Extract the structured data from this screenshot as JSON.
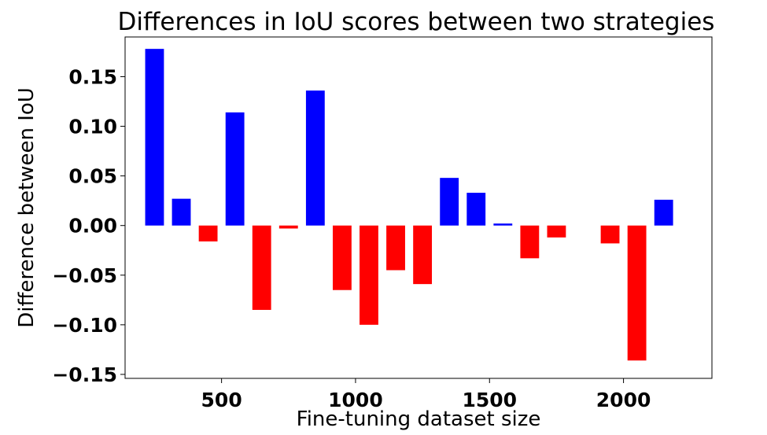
{
  "chart_data": {
    "type": "bar",
    "title": "Differences in IoU scores between two strategies",
    "xlabel": "Fine-tuning dataset size",
    "ylabel": "Difference between IoU",
    "x": [
      250,
      350,
      450,
      550,
      650,
      750,
      850,
      950,
      1050,
      1150,
      1250,
      1350,
      1450,
      1550,
      1650,
      1750,
      1850,
      1950,
      2050,
      2150
    ],
    "values": [
      0.178,
      0.027,
      -0.016,
      0.114,
      -0.085,
      -0.003,
      0.136,
      -0.065,
      -0.1,
      -0.045,
      -0.059,
      0.048,
      0.033,
      0.002,
      -0.033,
      -0.012,
      0.0,
      -0.018,
      -0.136,
      0.026
    ],
    "xlim": [
      140,
      2330
    ],
    "ylim": [
      -0.154,
      0.19
    ],
    "xticks": [
      500,
      1000,
      1500,
      2000
    ],
    "xtick_labels": [
      "500",
      "1000",
      "1500",
      "2000"
    ],
    "yticks": [
      -0.15,
      -0.1,
      -0.05,
      0.0,
      0.05,
      0.1,
      0.15
    ],
    "ytick_labels": [
      "−0.15",
      "−0.10",
      "−0.05",
      "0.00",
      "0.05",
      "0.10",
      "0.15"
    ],
    "colors": {
      "positive": "#0000ff",
      "negative": "#ff0000"
    },
    "grid": false
  }
}
